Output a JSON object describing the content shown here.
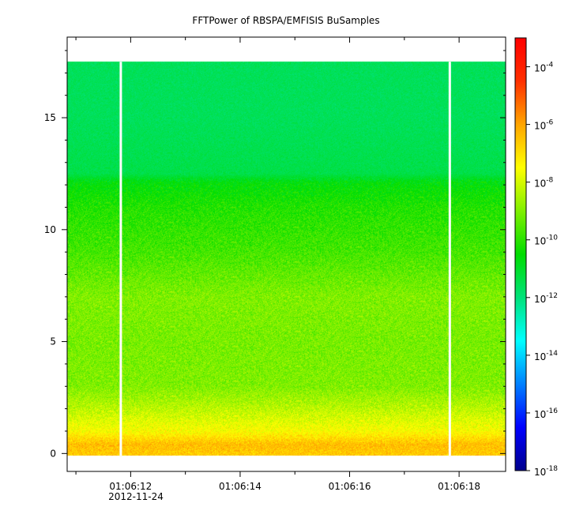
{
  "chart_data": {
    "type": "heatmap",
    "title": "FFTPower of RBSPA/EMFISIS  BuSamples",
    "xlabel": "",
    "ylabel": "",
    "x_tick_labels": [
      "01:06:12",
      "01:06:14",
      "01:06:16",
      "01:06:18"
    ],
    "x_date_label": "2012-11-24",
    "x_range_seconds": [
      70.84,
      78.85
    ],
    "x_major_ticks_seconds": [
      72,
      74,
      76,
      78
    ],
    "y_range": [
      -0.8,
      18.6
    ],
    "y_ticks": [
      0,
      5,
      10,
      15
    ],
    "data_extent_y": [
      -0.1,
      17.5
    ],
    "data_gaps_x_seconds": [
      71.82,
      77.83
    ],
    "colorbar": {
      "scale": "log",
      "range": [
        1e-18,
        0.001
      ],
      "ticks": [
        {
          "value": 1e-18,
          "base": "10",
          "exp": "-18"
        },
        {
          "value": 1e-16,
          "base": "10",
          "exp": "-16"
        },
        {
          "value": 1e-14,
          "base": "10",
          "exp": "-14"
        },
        {
          "value": 1e-12,
          "base": "10",
          "exp": "-12"
        },
        {
          "value": 1e-10,
          "base": "10",
          "exp": "-10"
        },
        {
          "value": 1e-08,
          "base": "10",
          "exp": "-8"
        },
        {
          "value": 1e-06,
          "base": "10",
          "exp": "-6"
        },
        {
          "value": 0.0001,
          "base": "10",
          "exp": "-4"
        }
      ],
      "colormap": [
        "#00008c",
        "#0000ff",
        "#0080ff",
        "#00ffff",
        "#00e27a",
        "#00dd00",
        "#80f000",
        "#ffff00",
        "#ffa500",
        "#ff3000",
        "#ff0000"
      ]
    },
    "spectral_profile_log10_power": [
      {
        "y": 0.0,
        "log10_power": -6.6
      },
      {
        "y": 0.4,
        "log10_power": -6.4
      },
      {
        "y": 1.0,
        "log10_power": -7.5
      },
      {
        "y": 2.0,
        "log10_power": -8.3
      },
      {
        "y": 3.0,
        "log10_power": -9.0
      },
      {
        "y": 5.0,
        "log10_power": -9.1
      },
      {
        "y": 7.0,
        "log10_power": -9.0
      },
      {
        "y": 9.0,
        "log10_power": -9.7
      },
      {
        "y": 11.0,
        "log10_power": -10.1
      },
      {
        "y": 12.1,
        "log10_power": -10.6
      },
      {
        "y": 12.5,
        "log10_power": -11.4
      },
      {
        "y": 15.0,
        "log10_power": -11.6
      },
      {
        "y": 17.5,
        "log10_power": -11.6
      }
    ],
    "grid": false,
    "legend": "none"
  }
}
